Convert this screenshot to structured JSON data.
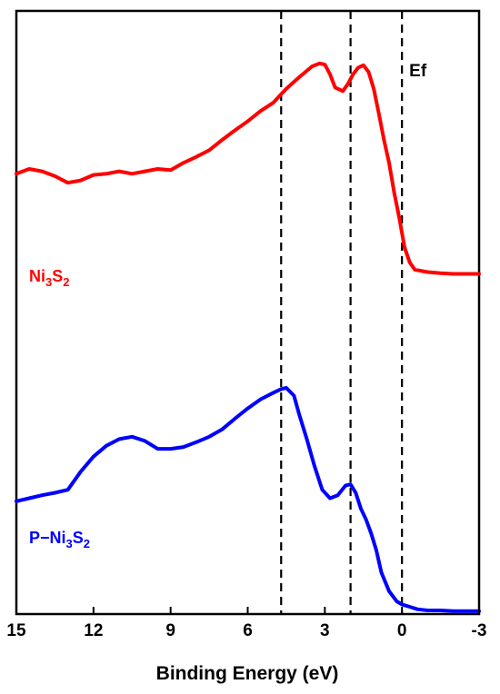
{
  "chart_data": {
    "type": "line",
    "xlabel": "Binding Energy (eV)",
    "xlim": [
      15,
      -3
    ],
    "x_reversed": true,
    "xticks": [
      15,
      12,
      9,
      6,
      3,
      0,
      -3
    ],
    "ylim": [
      0,
      100
    ],
    "yticks_shown": false,
    "grid": false,
    "reference_lines": [
      {
        "x": 4.7,
        "style": "dashed"
      },
      {
        "x": 2.0,
        "style": "dashed"
      },
      {
        "x": 0.0,
        "style": "dashed",
        "label": "Ef"
      }
    ],
    "series": [
      {
        "label_parts": [
          "Ni",
          "3",
          "S",
          "2"
        ],
        "color": "#ff0000",
        "x": [
          15.0,
          14.5,
          14.0,
          13.5,
          13.0,
          12.5,
          12.0,
          11.5,
          11.0,
          10.5,
          10.0,
          9.5,
          9.0,
          8.5,
          8.0,
          7.5,
          7.0,
          6.5,
          6.0,
          5.5,
          5.0,
          4.7,
          4.5,
          4.0,
          3.5,
          3.2,
          3.0,
          2.8,
          2.6,
          2.3,
          2.1,
          1.9,
          1.7,
          1.5,
          1.3,
          1.1,
          0.9,
          0.7,
          0.5,
          0.3,
          0.1,
          -0.1,
          -0.3,
          -0.5,
          -1.0,
          -1.5,
          -2.0,
          -2.5,
          -3.0
        ],
        "y": [
          73.0,
          73.8,
          73.4,
          72.6,
          71.5,
          71.9,
          72.8,
          73.0,
          73.4,
          73.0,
          73.4,
          73.8,
          73.6,
          74.8,
          75.8,
          76.9,
          78.6,
          80.2,
          81.7,
          83.4,
          84.8,
          86.2,
          87.1,
          89.0,
          90.8,
          91.3,
          91.1,
          89.5,
          87.3,
          86.7,
          87.9,
          89.5,
          90.6,
          91.0,
          89.9,
          87.1,
          83.0,
          78.6,
          74.8,
          69.8,
          65.6,
          60.8,
          58.3,
          57.1,
          56.7,
          56.5,
          56.4,
          56.4,
          56.4
        ]
      },
      {
        "label_parts": [
          "P−Ni",
          "3",
          "S",
          "2"
        ],
        "color": "#0000ff",
        "x": [
          15.0,
          14.5,
          14.0,
          13.5,
          13.0,
          12.5,
          12.0,
          11.5,
          11.0,
          10.5,
          10.0,
          9.5,
          9.0,
          8.5,
          8.0,
          7.5,
          7.0,
          6.5,
          6.0,
          5.5,
          5.0,
          4.7,
          4.5,
          4.2,
          4.0,
          3.7,
          3.4,
          3.1,
          2.8,
          2.5,
          2.2,
          2.0,
          1.8,
          1.6,
          1.4,
          1.2,
          1.0,
          0.8,
          0.5,
          0.2,
          0.0,
          -0.3,
          -0.6,
          -1.0,
          -1.5,
          -2.0,
          -2.5,
          -3.0
        ],
        "y": [
          18.7,
          19.2,
          19.7,
          20.1,
          20.6,
          23.6,
          26.1,
          27.9,
          29.0,
          29.4,
          28.7,
          27.4,
          27.4,
          27.7,
          28.5,
          29.4,
          30.6,
          32.4,
          34.1,
          35.6,
          36.7,
          37.3,
          37.5,
          36.2,
          33.1,
          29.0,
          24.5,
          20.6,
          19.2,
          19.7,
          21.3,
          21.5,
          20.1,
          17.5,
          15.7,
          13.4,
          10.6,
          6.9,
          3.8,
          2.1,
          1.6,
          1.2,
          0.8,
          0.6,
          0.6,
          0.5,
          0.5,
          0.5
        ]
      }
    ]
  }
}
